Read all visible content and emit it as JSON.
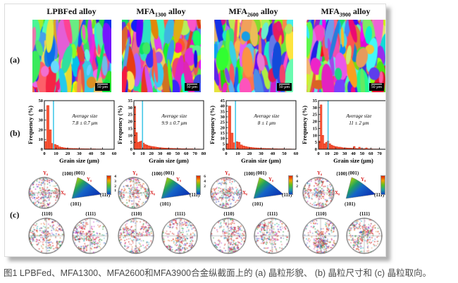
{
  "page": {
    "caption": "图1 LPBFed、MFA1300、MFA2600和MFA3900合金纵截面上的 (a) 晶粒形貌、 (b) 晶粒尺寸和 (c) 晶粒取向。"
  },
  "figure": {
    "row_labels": [
      "(a)",
      "(b)",
      "(c)"
    ],
    "columns": [
      {
        "title_base": "LPBFed",
        "title_sub": "",
        "title_suffix": " alloy",
        "scale_bar": "50 μm",
        "colorbar_ticks": [
          "4",
          "3",
          "2",
          "1"
        ]
      },
      {
        "title_base": "MFA",
        "title_sub": "1300",
        "title_suffix": " alloy",
        "scale_bar": "50 μm",
        "colorbar_ticks": [
          "6",
          "4",
          "2"
        ]
      },
      {
        "title_base": "MFA",
        "title_sub": "2600",
        "title_suffix": " alloy",
        "scale_bar": "50 μm",
        "colorbar_ticks": [
          "6",
          "4",
          "2"
        ]
      },
      {
        "title_base": "MFA",
        "title_sub": "3900",
        "title_suffix": " alloy",
        "scale_bar": "50 μm",
        "colorbar_ticks": [
          "4",
          "3",
          "2",
          "1"
        ]
      }
    ],
    "pole": {
      "pf100": "{100}",
      "pf110": "{110}",
      "pf111": "{111}",
      "ipf001": "(001)",
      "ipf101": "(101)",
      "ipf111": "(111)",
      "axis_y": "Y₀",
      "axis_x": "X₀"
    },
    "colors": {
      "hist_fill": "#fb5a3c",
      "hist_stroke": "#d81e00",
      "avg_line": "#45c8e8",
      "axis_label_red": "#d81e1e"
    }
  },
  "chart_data": [
    {
      "type": "bar",
      "title": "LPBFed alloy grain size distribution",
      "xlabel": "Grain size (μm)",
      "ylabel": "Frequency (%)",
      "xlim": [
        0,
        60
      ],
      "ylim": [
        0,
        50
      ],
      "xticks": [
        0,
        10,
        20,
        30,
        40,
        50,
        60
      ],
      "yticks": [
        0,
        10,
        20,
        30,
        40,
        50
      ],
      "bin_width": 2,
      "values": [
        8,
        45,
        20,
        6,
        5,
        4,
        2.5,
        2,
        1.5,
        1.2,
        1,
        0.9,
        0.8,
        0.8,
        0.7,
        0.6,
        0.6,
        0.5,
        0.5,
        0.4,
        0.4,
        0.4,
        0.3,
        0.3,
        0.3,
        0.2,
        0.2,
        0.2,
        0.2,
        0.1
      ],
      "avg_line_x": 7.8,
      "annotation": {
        "line1": "Average size",
        "line2": "7.8 ± 0.7 μm"
      }
    },
    {
      "type": "bar",
      "title": "MFA1300 alloy grain size distribution",
      "xlabel": "Grain size (μm)",
      "ylabel": "Frequency (%)",
      "xlim": [
        0,
        80
      ],
      "ylim": [
        0,
        35
      ],
      "xticks": [
        0,
        10,
        20,
        30,
        40,
        50,
        60,
        70,
        80
      ],
      "yticks": [
        0,
        5,
        10,
        15,
        20,
        25,
        30,
        35
      ],
      "bin_width": 2,
      "values": [
        31,
        12,
        5,
        5.5,
        6,
        4.5,
        3.5,
        3,
        2.5,
        2.2,
        2,
        1.8,
        1.6,
        1.4,
        1.2,
        1.1,
        1,
        0.9,
        0.8,
        0.8,
        0.7,
        0.7,
        0.6,
        0.6,
        0.5,
        0.5,
        0.5,
        0.4,
        0.4,
        0.4,
        0.3,
        0.3,
        0.3,
        0.3,
        0.2,
        0.2,
        0.2,
        0.2,
        0.1,
        0.1
      ],
      "avg_line_x": 9.9,
      "annotation": {
        "line1": "Average size",
        "line2": "9.9 ± 0.7 μm"
      }
    },
    {
      "type": "bar",
      "title": "MFA2600 alloy grain size distribution",
      "xlabel": "Grain size (μm)",
      "ylabel": "Frequency (%)",
      "xlim": [
        0,
        60
      ],
      "ylim": [
        0,
        45
      ],
      "xticks": [
        0,
        10,
        20,
        30,
        40,
        50,
        60
      ],
      "yticks": [
        0,
        5,
        10,
        15,
        20,
        25,
        30,
        35,
        40,
        45
      ],
      "bin_width": 2,
      "values": [
        5,
        40,
        15,
        6,
        7,
        6.5,
        4,
        3,
        2.5,
        2,
        1.8,
        1.5,
        1.3,
        1.2,
        1,
        0.9,
        0.8,
        0.7,
        0.7,
        0.6,
        0.5,
        0.5,
        0.4,
        0.4,
        0.4,
        0.3,
        0.3,
        0.3,
        0.2,
        0.2
      ],
      "avg_line_x": 8,
      "annotation": {
        "line1": "Average size",
        "line2": "8 ± 1 μm"
      }
    },
    {
      "type": "bar",
      "title": "MFA3900 alloy grain size distribution",
      "xlabel": "Grain size (μm)",
      "ylabel": "Frequency (%)",
      "xlim": [
        0,
        80
      ],
      "ylim": [
        0,
        35
      ],
      "xticks": [
        0,
        10,
        20,
        30,
        40,
        50,
        60,
        70,
        80
      ],
      "yticks": [
        0,
        5,
        10,
        15,
        20,
        25,
        30,
        35
      ],
      "bin_width": 2,
      "values": [
        6,
        32,
        10,
        4,
        5,
        6,
        4,
        3,
        2.5,
        2,
        1.8,
        1.5,
        1.5,
        1.2,
        1,
        1,
        0.9,
        0.8,
        0.8,
        0.7,
        2,
        0.6,
        0.5,
        1.5,
        0.5,
        0.4,
        0.4,
        1,
        0.3,
        0.3,
        0.3,
        0.2,
        0.2,
        0.2,
        0.2,
        0.1,
        0.1,
        0.1,
        0.1,
        0.1
      ],
      "avg_line_x": 11,
      "annotation": {
        "line1": "Average size",
        "line2": "11 ± 2 μm"
      }
    }
  ]
}
